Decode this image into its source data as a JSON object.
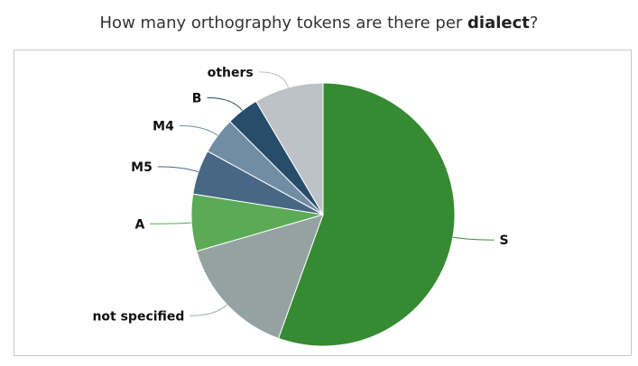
{
  "title": {
    "prefix": "How many orthography tokens are there per ",
    "emphasis": "dialect",
    "suffix": "?"
  },
  "chart_data": {
    "type": "pie",
    "title": "How many orthography tokens are there per dialect?",
    "slices": [
      {
        "label": "S",
        "value": 55.5,
        "color": "#368a32"
      },
      {
        "label": "not specified",
        "value": 15.0,
        "color": "#94a3a1"
      },
      {
        "label": "A",
        "value": 7.0,
        "color": "#5aaa56"
      },
      {
        "label": "M5",
        "value": 5.5,
        "color": "#476785"
      },
      {
        "label": "M4",
        "value": 4.5,
        "color": "#718da6"
      },
      {
        "label": "B",
        "value": 4.0,
        "color": "#284d6b"
      },
      {
        "label": "others",
        "value": 8.5,
        "color": "#bcc2c7"
      }
    ],
    "start_angle_deg": 0,
    "direction": "clockwise",
    "slice_border_color": "#ffffff"
  }
}
